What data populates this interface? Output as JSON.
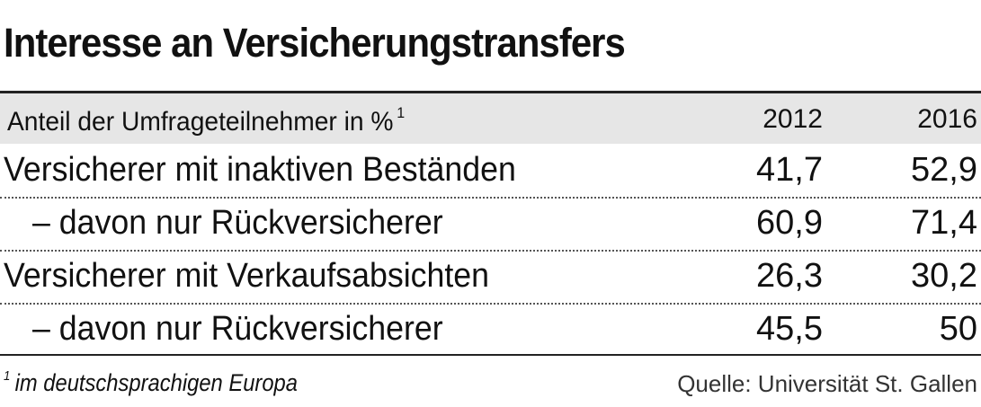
{
  "title": "Interesse an Versicherungstransfers",
  "header": {
    "label": "Anteil der Umfrageteilnehmer in %",
    "label_footnote": "1",
    "columns": [
      "2012",
      "2016"
    ]
  },
  "rows": [
    {
      "label": "Versicherer mit inaktiven Beständen",
      "v2012": "41,7",
      "v2016": "52,9",
      "indent": false
    },
    {
      "label": "– davon nur Rückversicherer",
      "v2012": "60,9",
      "v2016": "71,4",
      "indent": true
    },
    {
      "label": "Versicherer mit Verkaufsabsichten",
      "v2012": "26,3",
      "v2016": "30,2",
      "indent": false
    },
    {
      "label": "– davon nur Rückversicherer",
      "v2012": "45,5",
      "v2016": "50",
      "indent": true
    }
  ],
  "footnote": {
    "marker": "1",
    "text": "im deutschsprachigen Europa"
  },
  "source": "Quelle: Universität St. Gallen",
  "chart_data": {
    "type": "table",
    "title": "Interesse an Versicherungstransfers",
    "unit": "Anteil der Umfrageteilnehmer in %",
    "columns": [
      "2012",
      "2016"
    ],
    "rows": [
      {
        "label": "Versicherer mit inaktiven Beständen",
        "values": [
          41.7,
          52.9
        ]
      },
      {
        "label": "– davon nur Rückversicherer",
        "values": [
          60.9,
          71.4
        ]
      },
      {
        "label": "Versicherer mit Verkaufsabsichten",
        "values": [
          26.3,
          30.2
        ]
      },
      {
        "label": "– davon nur Rückversicherer",
        "values": [
          45.5,
          50
        ]
      }
    ]
  }
}
